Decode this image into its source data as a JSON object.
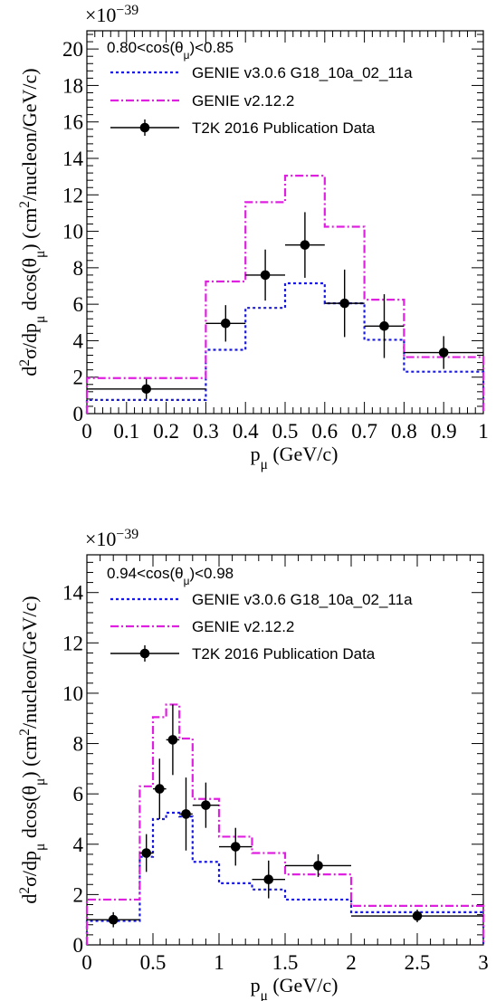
{
  "chart_data": [
    {
      "type": "step-histogram",
      "scale_label": "×10",
      "scale_exponent": "−39",
      "annotation": "0.80<cos(θ_μ)<0.85",
      "xlabel": "p_μ (GeV/c)",
      "ylabel": "d²σ/dp_μ dcos(θ_μ) (cm²/nucleon/GeV/c)",
      "xlim": [
        0,
        1
      ],
      "ylim": [
        0,
        21
      ],
      "xticks": [
        0,
        0.1,
        0.2,
        0.3,
        0.4,
        0.5,
        0.6,
        0.7,
        0.8,
        0.9,
        1
      ],
      "xtick_labels": [
        "0",
        "0.1",
        "0.2",
        "0.3",
        "0.4",
        "0.5",
        "0.6",
        "0.7",
        "0.8",
        "0.9",
        "1"
      ],
      "yticks": [
        0,
        2,
        4,
        6,
        8,
        10,
        12,
        14,
        16,
        18,
        20
      ],
      "ytick_labels": [
        "0",
        "2",
        "4",
        "6",
        "8",
        "10",
        "12",
        "14",
        "16",
        "18",
        "20"
      ],
      "bin_edges": [
        0,
        0.3,
        0.4,
        0.5,
        0.6,
        0.7,
        0.8,
        1.0
      ],
      "series": [
        {
          "name": "GENIE v3.0.6 G18_10a_02_11a",
          "style": "dotted",
          "color": "#1a1adf",
          "values": [
            0.75,
            3.5,
            5.8,
            7.15,
            6.05,
            4.05,
            2.3
          ]
        },
        {
          "name": "GENIE v2.12.2",
          "style": "dashdot",
          "color": "#e020e0",
          "values": [
            1.95,
            7.25,
            11.6,
            13.05,
            10.25,
            6.25,
            3.1
          ]
        },
        {
          "name": "T2K 2016 Publication Data",
          "style": "points",
          "color": "#000000",
          "x": [
            0.15,
            0.35,
            0.45,
            0.55,
            0.65,
            0.75,
            0.9
          ],
          "y": [
            1.35,
            4.95,
            7.6,
            9.25,
            6.05,
            4.8,
            3.35
          ],
          "xerr": [
            0.15,
            0.05,
            0.05,
            0.05,
            0.05,
            0.05,
            0.1
          ],
          "yerr": [
            0.55,
            1.0,
            1.4,
            1.8,
            1.85,
            1.75,
            0.9
          ]
        }
      ]
    },
    {
      "type": "step-histogram",
      "scale_label": "×10",
      "scale_exponent": "−39",
      "annotation": "0.94<cos(θ_μ)<0.98",
      "xlabel": "p_μ (GeV/c)",
      "ylabel": "d²σ/dp_μ dcos(θ_μ) (cm²/nucleon/GeV/c)",
      "xlim": [
        0,
        3
      ],
      "ylim": [
        0,
        15.5
      ],
      "xticks": [
        0,
        0.5,
        1,
        1.5,
        2,
        2.5,
        3
      ],
      "xtick_labels": [
        "0",
        "0.5",
        "1",
        "1.5",
        "2",
        "2.5",
        "3"
      ],
      "yticks": [
        0,
        2,
        4,
        6,
        8,
        10,
        12,
        14
      ],
      "ytick_labels": [
        "0",
        "2",
        "4",
        "6",
        "8",
        "10",
        "12",
        "14"
      ],
      "bin_edges": [
        0,
        0.4,
        0.5,
        0.6,
        0.7,
        0.8,
        1.0,
        1.25,
        1.5,
        2.0,
        3.0
      ],
      "series": [
        {
          "name": "GENIE v3.0.6 G18_10a_02_11a",
          "style": "dotted",
          "color": "#1a1adf",
          "values": [
            0.95,
            3.5,
            5.0,
            5.25,
            5.1,
            3.3,
            2.45,
            2.2,
            1.8,
            1.3
          ]
        },
        {
          "name": "GENIE v2.12.2",
          "style": "dashdot",
          "color": "#e020e0",
          "values": [
            1.8,
            6.3,
            9.05,
            9.55,
            8.2,
            5.8,
            4.3,
            3.65,
            2.8,
            1.55
          ]
        },
        {
          "name": "T2K 2016 Publication Data",
          "style": "points",
          "color": "#000000",
          "x": [
            0.2,
            0.45,
            0.55,
            0.65,
            0.75,
            0.9,
            1.125,
            1.375,
            1.75,
            2.5
          ],
          "y": [
            1.0,
            3.65,
            6.2,
            8.15,
            5.2,
            5.55,
            3.9,
            2.6,
            3.15,
            1.15
          ],
          "xerr": [
            0.2,
            0.05,
            0.05,
            0.05,
            0.05,
            0.1,
            0.125,
            0.125,
            0.25,
            0.5
          ],
          "yerr": [
            0.3,
            0.75,
            1.2,
            1.4,
            1.45,
            0.9,
            0.75,
            0.75,
            0.45,
            0.25
          ]
        }
      ]
    }
  ]
}
